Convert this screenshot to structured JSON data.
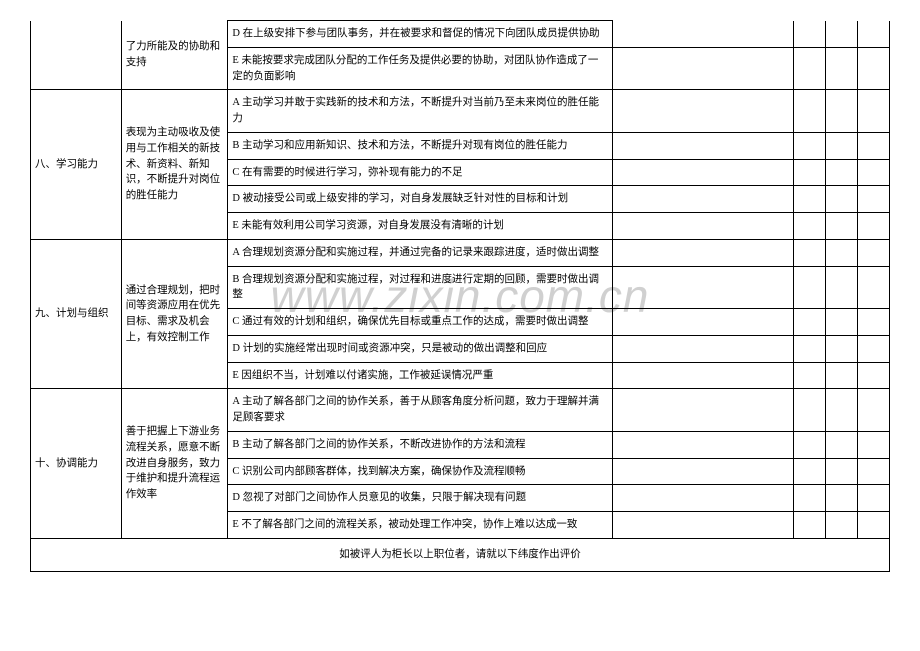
{
  "watermark": "www.zixin.com.cn",
  "partial_row1": {
    "desc_fragment": "了力所能及的协助和支持",
    "opts": [
      "D 在上级安排下参与团队事务，并在被要求和督促的情况下向团队成员提供协助",
      "E 未能按要求完成团队分配的工作任务及提供必要的协助，对团队协作造成了一定的负面影响"
    ]
  },
  "rows": [
    {
      "cat": "八、学习能力",
      "desc": "表现为主动吸收及使用与工作相关的新技术、新资料、新知识，不断提升对岗位的胜任能力",
      "opts": [
        "A 主动学习并敢于实践新的技术和方法，不断提升对当前乃至未来岗位的胜任能力",
        "B 主动学习和应用新知识、技术和方法，不断提升对现有岗位的胜任能力",
        "C 在有需要的时候进行学习，弥补现有能力的不足",
        "D 被动接受公司或上级安排的学习，对自身发展缺乏针对性的目标和计划",
        "E 未能有效利用公司学习资源，对自身发展没有清晰的计划"
      ]
    },
    {
      "cat": "九、计划与组织",
      "desc": "通过合理规划，把时间等资源应用在优先目标、需求及机会上，有效控制工作",
      "opts": [
        "A 合理规划资源分配和实施过程，并通过完备的记录来跟踪进度，适时做出调整",
        "B 合理规划资源分配和实施过程，对过程和进度进行定期的回顾，需要时做出调整",
        "C 通过有效的计划和组织，确保优先目标或重点工作的达成，需要时做出调整",
        "D 计划的实施经常出现时间或资源冲突，只是被动的做出调整和回应",
        "E 因组织不当，计划难以付诸实施，工作被延误情况严重"
      ]
    },
    {
      "cat": "十、协调能力",
      "desc": "善于把握上下游业务流程关系，愿意不断 改进自身服务，致力于维护和提升流程运作效率",
      "opts": [
        "A 主动了解各部门之间的协作关系，善于从顾客角度分析问题，致力于理解并满足顾客要求",
        "B 主动了解各部门之间的协作关系，不断改进协作的方法和流程",
        "C 识别公司内部顾客群体，找到解决方案，确保协作及流程顺畅",
        "D 忽视了对部门之间协作人员意见的收集，只限于解决现有问题",
        "E 不了解各部门之间的流程关系，被动处理工作冲突，协作上难以达成一致"
      ]
    }
  ],
  "footer": "如被评人为柜长以上职位者，请就以下纬度作出评价"
}
